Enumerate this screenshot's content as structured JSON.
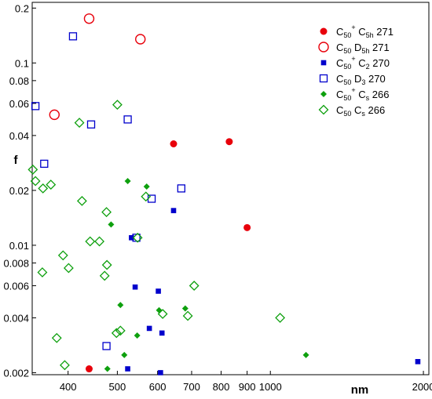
{
  "chart_data": {
    "type": "scatter",
    "title": "",
    "xlabel": "nm",
    "ylabel": "f",
    "xscale": "log",
    "yscale": "log",
    "xlim": [
      340,
      2050
    ],
    "ylim": [
      0.00195,
      0.215
    ],
    "grid": false,
    "legend_position": "top-right",
    "x_ticks": [
      {
        "value": 400,
        "label": "400"
      },
      {
        "value": 500,
        "label": "500"
      },
      {
        "value": 600,
        "label": "600"
      },
      {
        "value": 700,
        "label": "700"
      },
      {
        "value": 800,
        "label": "800"
      },
      {
        "value": 900,
        "label": "900"
      },
      {
        "value": 1000,
        "label": "1000"
      },
      {
        "value": 2000,
        "label": "2000"
      }
    ],
    "y_ticks": [
      {
        "value": 0.002,
        "label": "0.002"
      },
      {
        "value": 0.004,
        "label": "0.004"
      },
      {
        "value": 0.006,
        "label": "0.006"
      },
      {
        "value": 0.008,
        "label": "0.008"
      },
      {
        "value": 0.01,
        "label": "0.01"
      },
      {
        "value": 0.02,
        "label": "0.02"
      },
      {
        "value": 0.04,
        "label": "0.04"
      },
      {
        "value": 0.06,
        "label": "0.06"
      },
      {
        "value": 0.08,
        "label": "0.08"
      },
      {
        "value": 0.1,
        "label": "0.1"
      },
      {
        "value": 0.2,
        "label": "0.2"
      }
    ],
    "series": [
      {
        "name": "C50+ C5h 271",
        "legend": {
          "base": "C",
          "sub1": "50",
          "sup": "+",
          "mid": "C",
          "sub2": "5h",
          "tail": "271"
        },
        "marker": "circle",
        "filled": true,
        "color": "#e8000b",
        "points": [
          [
            440,
            0.0021
          ],
          [
            645,
            0.036
          ],
          [
            830,
            0.037
          ],
          [
            900,
            0.0125
          ]
        ]
      },
      {
        "name": "C50 D5h 271",
        "legend": {
          "base": "C",
          "sub1": "50",
          "sup": "",
          "mid": "D",
          "sub2": "5h",
          "tail": "271"
        },
        "marker": "circle",
        "filled": false,
        "color": "#e8000b",
        "points": [
          [
            440,
            0.175
          ],
          [
            555,
            0.135
          ],
          [
            376,
            0.052
          ]
        ]
      },
      {
        "name": "C50+ C2 270",
        "legend": {
          "base": "C",
          "sub1": "50",
          "sup": "+",
          "mid": "C",
          "sub2": "2",
          "tail": "270"
        },
        "marker": "square",
        "filled": true,
        "color": "#0000cc",
        "points": [
          [
            533,
            0.011
          ],
          [
            645,
            0.0155
          ],
          [
            542,
            0.0059
          ],
          [
            602,
            0.0056
          ],
          [
            578,
            0.0035
          ],
          [
            612,
            0.0033
          ],
          [
            524,
            0.0021
          ],
          [
            608,
            0.002
          ],
          [
            1950,
            0.0023
          ]
        ]
      },
      {
        "name": "C50 D3 270",
        "legend": {
          "base": "C",
          "sub1": "50",
          "sup": "",
          "mid": "D",
          "sub2": "3",
          "tail": "270"
        },
        "marker": "square",
        "filled": false,
        "color": "#0000cc",
        "points": [
          [
            409,
            0.14
          ],
          [
            345,
            0.058
          ],
          [
            444,
            0.046
          ],
          [
            524,
            0.049
          ],
          [
            359,
            0.028
          ],
          [
            668,
            0.0205
          ],
          [
            584,
            0.018
          ],
          [
            545,
            0.011
          ],
          [
            476,
            0.0028
          ]
        ]
      },
      {
        "name": "C50+ Cs 266",
        "legend": {
          "base": "C",
          "sub1": "50",
          "sup": "+",
          "mid": "C",
          "sub2": "s",
          "tail": "266"
        },
        "marker": "diamond",
        "filled": true,
        "color": "#0ea00e",
        "points": [
          [
            524,
            0.0225
          ],
          [
            571,
            0.021
          ],
          [
            486,
            0.013
          ],
          [
            507,
            0.0047
          ],
          [
            680,
            0.0045
          ],
          [
            604,
            0.0044
          ],
          [
            547,
            0.0032
          ],
          [
            516,
            0.0025
          ],
          [
            478,
            0.0021
          ],
          [
            1175,
            0.0025
          ]
        ]
      },
      {
        "name": "C50 Cs 266",
        "legend": {
          "base": "C",
          "sub1": "50",
          "sup": "",
          "mid": "C",
          "sub2": "s",
          "tail": "266"
        },
        "marker": "diamond",
        "filled": false,
        "color": "#0ea00e",
        "points": [
          [
            500,
            0.059
          ],
          [
            421,
            0.047
          ],
          [
            341,
            0.026
          ],
          [
            345,
            0.0225
          ],
          [
            357,
            0.0205
          ],
          [
            370,
            0.0215
          ],
          [
            426,
            0.0175
          ],
          [
            476,
            0.0152
          ],
          [
            569,
            0.0185
          ],
          [
            442,
            0.0105
          ],
          [
            461,
            0.0105
          ],
          [
            548,
            0.011
          ],
          [
            391,
            0.0088
          ],
          [
            401,
            0.0075
          ],
          [
            477,
            0.0078
          ],
          [
            472,
            0.0068
          ],
          [
            356,
            0.0071
          ],
          [
            708,
            0.006
          ],
          [
            507,
            0.0034
          ],
          [
            498,
            0.0033
          ],
          [
            614,
            0.0042
          ],
          [
            688,
            0.0041
          ],
          [
            1045,
            0.004
          ],
          [
            380,
            0.0031
          ],
          [
            394,
            0.0022
          ]
        ]
      }
    ]
  }
}
